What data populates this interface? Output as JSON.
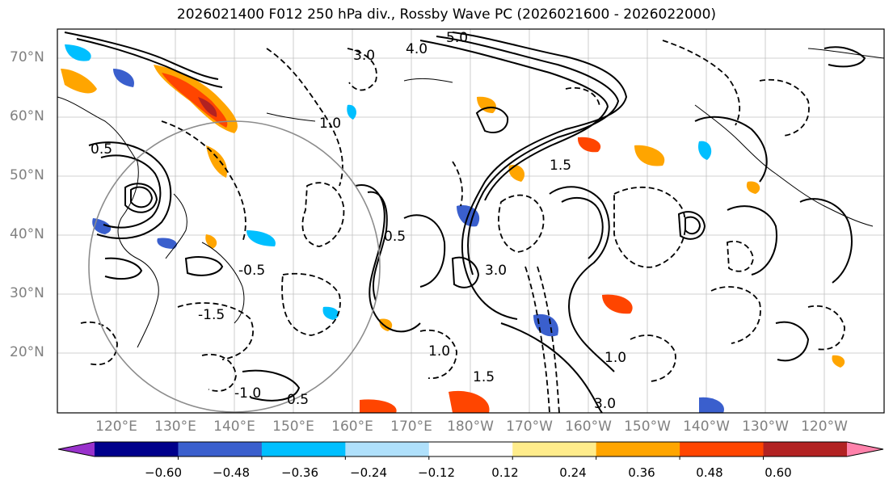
{
  "title": "2026021400 F012 250 hPa div., Rossby Wave PC (2026021600 - 2026022000)",
  "lat_labels": [
    "70°N",
    "60°N",
    "50°N",
    "40°N",
    "30°N",
    "20°N"
  ],
  "lon_labels": [
    "120°E",
    "130°E",
    "140°E",
    "150°E",
    "160°E",
    "170°E",
    "180°W",
    "170°W",
    "160°W",
    "150°W",
    "140°W",
    "130°W",
    "120°W"
  ],
  "colorbar": {
    "ticks": [
      "−0.60",
      "−0.48",
      "−0.36",
      "−0.24",
      "−0.12",
      "0.12",
      "0.24",
      "0.36",
      "0.48",
      "0.60"
    ],
    "colors": [
      "#9932cc",
      "#00008b",
      "#3a5fcd",
      "#00bfff",
      "#afe0fb",
      "#ffffff",
      "#ffec8b",
      "#ffa500",
      "#ff4500",
      "#b22222",
      "#ff82ab"
    ]
  },
  "contour_labels": [
    "5.0",
    "4.0",
    "3.0",
    "1.5",
    "1.0",
    "0.5",
    "-0.5",
    "-1.0",
    "-1.5",
    "3.0",
    "1.0",
    "0.5",
    "1.5",
    "0.5",
    "1.0",
    "3.0"
  ]
}
